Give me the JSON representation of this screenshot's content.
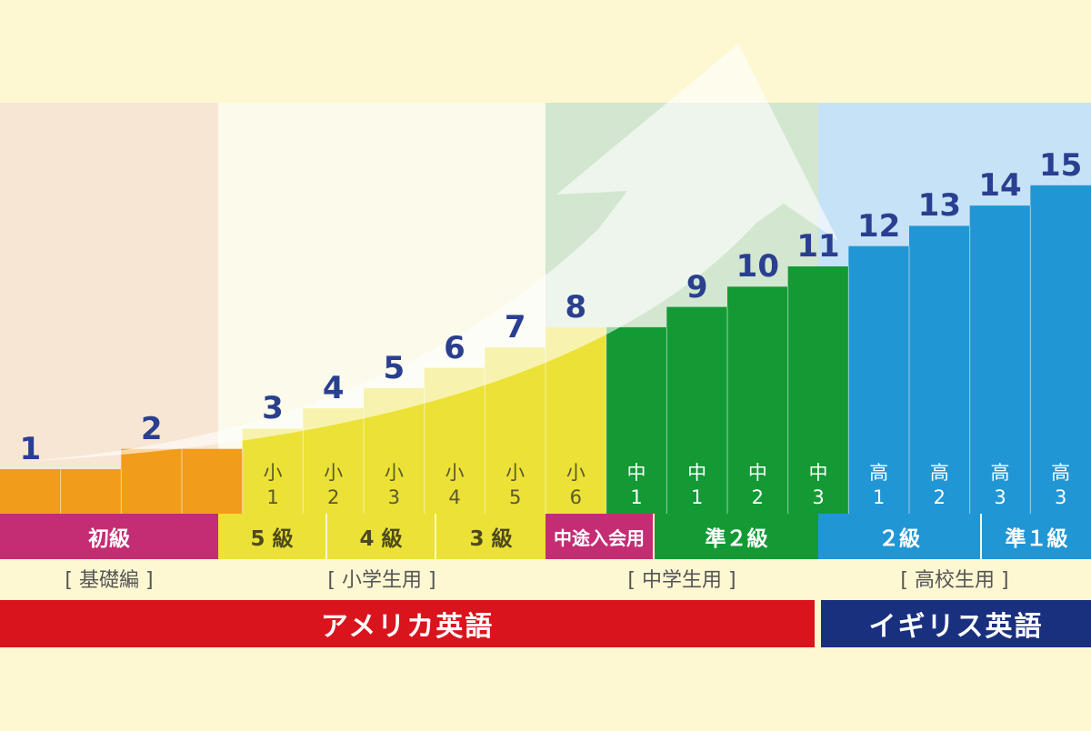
{
  "colors": {
    "background": "#fdf7d2",
    "orange": "#f29c1b",
    "yellow": "#ece136",
    "green": "#139a35",
    "blue": "#2196d4",
    "magenta": "#c42d74",
    "red": "#d9141d",
    "navy": "#19307f",
    "number": "#2a3f8f"
  },
  "steps": [
    {
      "num": "1",
      "value": 1,
      "grade": ""
    },
    {
      "num": "",
      "value": 1,
      "grade": ""
    },
    {
      "num": "2",
      "value": 2,
      "grade": ""
    },
    {
      "num": "",
      "value": 2,
      "grade": ""
    },
    {
      "num": "3",
      "value": 3,
      "grade": "小\n1"
    },
    {
      "num": "4",
      "value": 4,
      "grade": "小\n2"
    },
    {
      "num": "5",
      "value": 5,
      "grade": "小\n3"
    },
    {
      "num": "6",
      "value": 6,
      "grade": "小\n4"
    },
    {
      "num": "7",
      "value": 7,
      "grade": "小\n5"
    },
    {
      "num": "8",
      "value": 8,
      "grade": "小\n6"
    },
    {
      "num": "",
      "value": 8,
      "grade": "中\n1"
    },
    {
      "num": "9",
      "value": 9,
      "grade": "中\n1"
    },
    {
      "num": "10",
      "value": 10,
      "grade": "中\n2"
    },
    {
      "num": "11",
      "value": 11,
      "grade": "中\n3"
    },
    {
      "num": "12",
      "value": 12,
      "grade": "高\n1"
    },
    {
      "num": "13",
      "value": 13,
      "grade": "高\n2"
    },
    {
      "num": "14",
      "value": 14,
      "grade": "高\n3"
    },
    {
      "num": "15",
      "value": 15,
      "grade": "高\n3"
    }
  ],
  "levels": [
    {
      "label": "初級"
    },
    {
      "label": "5 級"
    },
    {
      "label": "4 級"
    },
    {
      "label": "3 級"
    },
    {
      "label": "中途入会用"
    },
    {
      "label": "準２級"
    },
    {
      "label": "２級"
    },
    {
      "label": "準１級"
    }
  ],
  "sections": [
    {
      "label": "[ 基礎編 ]"
    },
    {
      "label": "[ 小学生用 ]"
    },
    {
      "label": "[ 中学生用 ]"
    },
    {
      "label": "[ 高校生用 ]"
    }
  ],
  "tracks": [
    {
      "label": "アメリカ英語"
    },
    {
      "label": "イギリス英語"
    }
  ]
}
